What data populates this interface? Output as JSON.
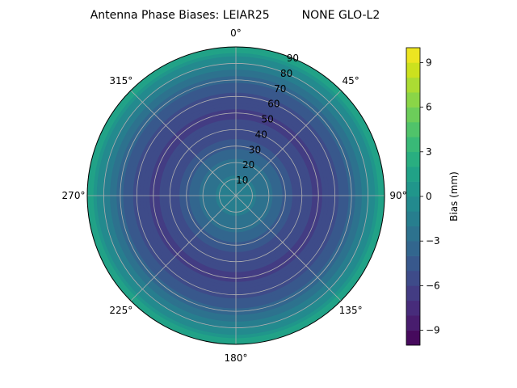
{
  "chart_data": {
    "type": "heatmap",
    "projection": "polar",
    "title": "Antenna Phase Biases: LEIAR25         NONE GLO-L2",
    "theta_zero_location": "N",
    "theta_direction": "clockwise",
    "theta_tick_labels": [
      "0°",
      "45°",
      "90°",
      "135°",
      "180°",
      "225°",
      "270°",
      "315°"
    ],
    "radial_axis": {
      "label": "",
      "range": [
        0,
        90
      ],
      "ticks": [
        10,
        20,
        30,
        40,
        50,
        60,
        70,
        80,
        90
      ]
    },
    "grid": true,
    "colorbar": {
      "label": "Bias (mm)",
      "colormap": "viridis",
      "range": [
        -10,
        10
      ],
      "ticks": [
        -9,
        -6,
        -3,
        0,
        3,
        6,
        9
      ],
      "tick_labels": [
        "−9",
        "−6",
        "−3",
        "0",
        "3",
        "6",
        "9"
      ],
      "levels": 20
    },
    "radial_profile": {
      "zenith_deg": [
        0,
        10,
        20,
        30,
        40,
        50,
        60,
        70,
        80,
        90
      ],
      "bias_mm": [
        -1.0,
        -1.8,
        -2.8,
        -4.5,
        -5.8,
        -6.2,
        -5.2,
        -3.5,
        -1.0,
        2.0
      ]
    }
  }
}
